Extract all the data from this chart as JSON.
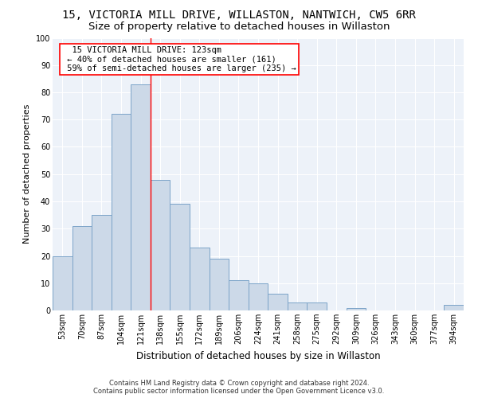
{
  "title1": "15, VICTORIA MILL DRIVE, WILLASTON, NANTWICH, CW5 6RR",
  "title2": "Size of property relative to detached houses in Willaston",
  "xlabel": "Distribution of detached houses by size in Willaston",
  "ylabel": "Number of detached properties",
  "categories": [
    "53sqm",
    "70sqm",
    "87sqm",
    "104sqm",
    "121sqm",
    "138sqm",
    "155sqm",
    "172sqm",
    "189sqm",
    "206sqm",
    "224sqm",
    "241sqm",
    "258sqm",
    "275sqm",
    "292sqm",
    "309sqm",
    "326sqm",
    "343sqm",
    "360sqm",
    "377sqm",
    "394sqm"
  ],
  "values": [
    20,
    31,
    35,
    72,
    83,
    48,
    39,
    23,
    19,
    11,
    10,
    6,
    3,
    3,
    0,
    1,
    0,
    0,
    0,
    0,
    2
  ],
  "bar_color": "#ccd9e8",
  "bar_edge_color": "#7ba3c8",
  "red_line_index": 4,
  "annotation_text": "  15 VICTORIA MILL DRIVE: 123sqm\n ← 40% of detached houses are smaller (161)\n 59% of semi-detached houses are larger (235) →",
  "annotation_box_color": "white",
  "annotation_box_edge": "red",
  "background_color": "#edf2f9",
  "grid_color": "white",
  "title1_fontsize": 10,
  "title2_fontsize": 9.5,
  "xlabel_fontsize": 8.5,
  "ylabel_fontsize": 8,
  "tick_fontsize": 7,
  "annot_fontsize": 7.5,
  "footer_text": "Contains HM Land Registry data © Crown copyright and database right 2024.\nContains public sector information licensed under the Open Government Licence v3.0.",
  "ylim": [
    0,
    100
  ],
  "yticks": [
    0,
    10,
    20,
    30,
    40,
    50,
    60,
    70,
    80,
    90,
    100
  ]
}
